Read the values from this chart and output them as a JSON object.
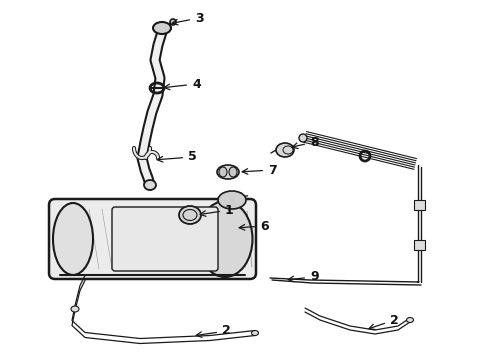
{
  "background_color": "#ffffff",
  "line_color": "#1a1a1a",
  "label_color": "#111111",
  "fig_width": 4.9,
  "fig_height": 3.6,
  "dpi": 100
}
